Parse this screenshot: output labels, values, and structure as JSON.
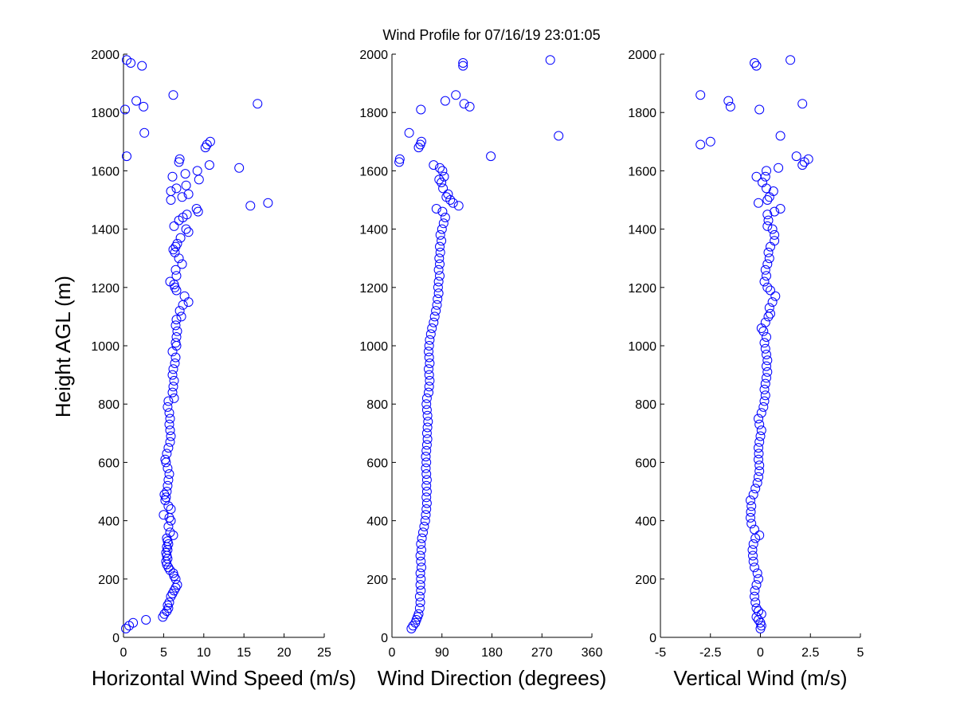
{
  "figure": {
    "title": "Wind Profile for  07/16/19 23:01:05",
    "ylabel": "Height AGL (m)"
  },
  "colors": {
    "marker": "#0000ff",
    "axis": "#000000",
    "background": "#ffffff"
  },
  "chart_data": [
    {
      "type": "scatter",
      "name": "speed",
      "xlabel": "Horizontal Wind Speed (m/s)",
      "ylabel": "Height AGL (m)",
      "xlim": [
        0,
        25
      ],
      "ylim": [
        0,
        2000
      ],
      "xticks": [
        0,
        5,
        10,
        15,
        20,
        25
      ],
      "xtick_labels": [
        "0",
        "5",
        "10",
        "15",
        "20",
        "25"
      ],
      "yticks": [
        0,
        200,
        400,
        600,
        800,
        1000,
        1200,
        1400,
        1600,
        1800,
        2000
      ],
      "ytick_labels": [
        "0",
        "200",
        "400",
        "600",
        "800",
        "1000",
        "1200",
        "1400",
        "1600",
        "1800",
        "2000"
      ],
      "grid": false,
      "points": [
        [
          0.3,
          30
        ],
        [
          0.7,
          40
        ],
        [
          1.2,
          50
        ],
        [
          2.8,
          60
        ],
        [
          4.9,
          70
        ],
        [
          5.1,
          80
        ],
        [
          5.4,
          90
        ],
        [
          5.6,
          100
        ],
        [
          5.5,
          110
        ],
        [
          5.7,
          120
        ],
        [
          5.9,
          140
        ],
        [
          6.1,
          150
        ],
        [
          6.3,
          160
        ],
        [
          6.5,
          170
        ],
        [
          6.7,
          180
        ],
        [
          6.5,
          200
        ],
        [
          6.3,
          210
        ],
        [
          6.2,
          220
        ],
        [
          5.8,
          230
        ],
        [
          5.6,
          240
        ],
        [
          5.4,
          250
        ],
        [
          5.3,
          260
        ],
        [
          5.5,
          270
        ],
        [
          5.4,
          280
        ],
        [
          5.3,
          290
        ],
        [
          5.5,
          300
        ],
        [
          5.4,
          310
        ],
        [
          5.6,
          320
        ],
        [
          5.5,
          330
        ],
        [
          5.4,
          340
        ],
        [
          6.2,
          350
        ],
        [
          5.8,
          360
        ],
        [
          5.6,
          380
        ],
        [
          5.9,
          400
        ],
        [
          5.7,
          410
        ],
        [
          5.0,
          420
        ],
        [
          5.9,
          440
        ],
        [
          5.6,
          450
        ],
        [
          5.2,
          470
        ],
        [
          5.3,
          480
        ],
        [
          5.1,
          490
        ],
        [
          5.4,
          500
        ],
        [
          5.5,
          520
        ],
        [
          5.6,
          540
        ],
        [
          5.7,
          560
        ],
        [
          5.5,
          580
        ],
        [
          5.3,
          600
        ],
        [
          5.2,
          610
        ],
        [
          5.4,
          630
        ],
        [
          5.6,
          650
        ],
        [
          5.8,
          670
        ],
        [
          5.9,
          690
        ],
        [
          5.8,
          710
        ],
        [
          5.7,
          730
        ],
        [
          5.8,
          750
        ],
        [
          5.7,
          770
        ],
        [
          5.5,
          790
        ],
        [
          5.6,
          810
        ],
        [
          6.3,
          820
        ],
        [
          6.1,
          840
        ],
        [
          6.2,
          860
        ],
        [
          6.3,
          880
        ],
        [
          6.1,
          900
        ],
        [
          6.2,
          920
        ],
        [
          6.4,
          940
        ],
        [
          6.5,
          960
        ],
        [
          6.1,
          980
        ],
        [
          6.6,
          1000
        ],
        [
          6.5,
          1010
        ],
        [
          6.6,
          1030
        ],
        [
          6.7,
          1050
        ],
        [
          6.5,
          1070
        ],
        [
          6.6,
          1090
        ],
        [
          7.2,
          1100
        ],
        [
          7.0,
          1120
        ],
        [
          7.4,
          1140
        ],
        [
          8.1,
          1150
        ],
        [
          7.6,
          1170
        ],
        [
          6.6,
          1190
        ],
        [
          6.4,
          1200
        ],
        [
          6.3,
          1210
        ],
        [
          5.8,
          1220
        ],
        [
          6.6,
          1240
        ],
        [
          6.5,
          1260
        ],
        [
          7.3,
          1280
        ],
        [
          6.9,
          1300
        ],
        [
          6.4,
          1320
        ],
        [
          6.2,
          1330
        ],
        [
          6.5,
          1340
        ],
        [
          6.7,
          1350
        ],
        [
          7.1,
          1370
        ],
        [
          8.1,
          1390
        ],
        [
          7.8,
          1400
        ],
        [
          6.3,
          1410
        ],
        [
          6.9,
          1430
        ],
        [
          7.4,
          1440
        ],
        [
          7.9,
          1450
        ],
        [
          9.3,
          1460
        ],
        [
          9.1,
          1470
        ],
        [
          15.8,
          1480
        ],
        [
          18.0,
          1490
        ],
        [
          5.9,
          1500
        ],
        [
          7.3,
          1510
        ],
        [
          8.1,
          1520
        ],
        [
          5.9,
          1530
        ],
        [
          6.6,
          1540
        ],
        [
          7.8,
          1550
        ],
        [
          9.4,
          1570
        ],
        [
          6.1,
          1580
        ],
        [
          7.7,
          1590
        ],
        [
          9.2,
          1600
        ],
        [
          14.4,
          1610
        ],
        [
          10.7,
          1620
        ],
        [
          6.9,
          1630
        ],
        [
          7.0,
          1640
        ],
        [
          0.4,
          1650
        ],
        [
          10.2,
          1680
        ],
        [
          10.4,
          1690
        ],
        [
          10.8,
          1700
        ],
        [
          2.6,
          1730
        ],
        [
          0.2,
          1810
        ],
        [
          2.5,
          1820
        ],
        [
          16.7,
          1830
        ],
        [
          1.6,
          1840
        ],
        [
          6.2,
          1860
        ],
        [
          2.3,
          1960
        ],
        [
          0.9,
          1970
        ],
        [
          0.4,
          1980
        ]
      ]
    },
    {
      "type": "scatter",
      "name": "direction",
      "xlabel": "Wind Direction (degrees)",
      "xlim": [
        0,
        360
      ],
      "ylim": [
        0,
        2000
      ],
      "xticks": [
        0,
        90,
        180,
        270,
        360
      ],
      "xtick_labels": [
        "0",
        "90",
        "180",
        "270",
        "360"
      ],
      "yticks": [
        0,
        200,
        400,
        600,
        800,
        1000,
        1200,
        1400,
        1600,
        1800,
        2000
      ],
      "ytick_labels": [
        "0",
        "200",
        "400",
        "600",
        "800",
        "1000",
        "1200",
        "1400",
        "1600",
        "1800",
        "2000"
      ],
      "grid": false,
      "points": [
        [
          35,
          30
        ],
        [
          38,
          40
        ],
        [
          42,
          50
        ],
        [
          44,
          60
        ],
        [
          46,
          70
        ],
        [
          48,
          80
        ],
        [
          50,
          100
        ],
        [
          51,
          120
        ],
        [
          50,
          140
        ],
        [
          52,
          160
        ],
        [
          51,
          180
        ],
        [
          52,
          200
        ],
        [
          51,
          220
        ],
        [
          53,
          240
        ],
        [
          52,
          260
        ],
        [
          51,
          280
        ],
        [
          53,
          300
        ],
        [
          52,
          320
        ],
        [
          54,
          340
        ],
        [
          56,
          360
        ],
        [
          58,
          380
        ],
        [
          60,
          400
        ],
        [
          61,
          420
        ],
        [
          62,
          440
        ],
        [
          63,
          460
        ],
        [
          62,
          480
        ],
        [
          63,
          500
        ],
        [
          62,
          520
        ],
        [
          63,
          540
        ],
        [
          62,
          560
        ],
        [
          61,
          580
        ],
        [
          62,
          600
        ],
        [
          61,
          620
        ],
        [
          62,
          640
        ],
        [
          63,
          660
        ],
        [
          64,
          680
        ],
        [
          63,
          700
        ],
        [
          64,
          720
        ],
        [
          65,
          740
        ],
        [
          64,
          760
        ],
        [
          63,
          780
        ],
        [
          62,
          800
        ],
        [
          63,
          820
        ],
        [
          66,
          840
        ],
        [
          67,
          860
        ],
        [
          68,
          880
        ],
        [
          67,
          900
        ],
        [
          66,
          920
        ],
        [
          68,
          940
        ],
        [
          67,
          960
        ],
        [
          66,
          980
        ],
        [
          67,
          1000
        ],
        [
          68,
          1020
        ],
        [
          70,
          1040
        ],
        [
          72,
          1060
        ],
        [
          75,
          1080
        ],
        [
          77,
          1100
        ],
        [
          79,
          1120
        ],
        [
          81,
          1140
        ],
        [
          82,
          1160
        ],
        [
          84,
          1180
        ],
        [
          83,
          1200
        ],
        [
          84,
          1220
        ],
        [
          86,
          1240
        ],
        [
          84,
          1260
        ],
        [
          86,
          1280
        ],
        [
          85,
          1300
        ],
        [
          87,
          1320
        ],
        [
          86,
          1340
        ],
        [
          89,
          1360
        ],
        [
          87,
          1380
        ],
        [
          90,
          1400
        ],
        [
          93,
          1420
        ],
        [
          96,
          1440
        ],
        [
          91,
          1460
        ],
        [
          80,
          1470
        ],
        [
          120,
          1480
        ],
        [
          110,
          1490
        ],
        [
          105,
          1500
        ],
        [
          98,
          1510
        ],
        [
          101,
          1520
        ],
        [
          92,
          1540
        ],
        [
          89,
          1560
        ],
        [
          85,
          1570
        ],
        [
          94,
          1580
        ],
        [
          91,
          1600
        ],
        [
          86,
          1610
        ],
        [
          75,
          1620
        ],
        [
          178,
          1650
        ],
        [
          13,
          1630
        ],
        [
          14,
          1640
        ],
        [
          48,
          1680
        ],
        [
          51,
          1690
        ],
        [
          53,
          1700
        ],
        [
          300,
          1720
        ],
        [
          31,
          1730
        ],
        [
          52,
          1810
        ],
        [
          140,
          1820
        ],
        [
          130,
          1830
        ],
        [
          96,
          1840
        ],
        [
          115,
          1860
        ],
        [
          128,
          1960
        ],
        [
          128,
          1970
        ],
        [
          285,
          1980
        ]
      ]
    },
    {
      "type": "scatter",
      "name": "vertical",
      "xlabel": "Vertical Wind (m/s)",
      "xlim": [
        -5,
        5
      ],
      "ylim": [
        0,
        2000
      ],
      "xticks": [
        -5,
        -2.5,
        0,
        2.5,
        5
      ],
      "xtick_labels": [
        "-5",
        "-2.5",
        "0",
        "2.5",
        "5"
      ],
      "yticks": [
        0,
        200,
        400,
        600,
        800,
        1000,
        1200,
        1400,
        1600,
        1800,
        2000
      ],
      "ytick_labels": [
        "0",
        "200",
        "400",
        "600",
        "800",
        "1000",
        "1200",
        "1400",
        "1600",
        "1800",
        "2000"
      ],
      "grid": false,
      "points": [
        [
          0.0,
          30
        ],
        [
          0.05,
          40
        ],
        [
          0.0,
          50
        ],
        [
          -0.1,
          60
        ],
        [
          -0.2,
          70
        ],
        [
          0.05,
          80
        ],
        [
          -0.1,
          90
        ],
        [
          -0.2,
          100
        ],
        [
          -0.25,
          120
        ],
        [
          -0.3,
          140
        ],
        [
          -0.28,
          160
        ],
        [
          -0.2,
          180
        ],
        [
          -0.1,
          200
        ],
        [
          -0.15,
          220
        ],
        [
          -0.3,
          240
        ],
        [
          -0.35,
          260
        ],
        [
          -0.38,
          280
        ],
        [
          -0.4,
          300
        ],
        [
          -0.35,
          320
        ],
        [
          -0.25,
          340
        ],
        [
          -0.05,
          350
        ],
        [
          -0.3,
          370
        ],
        [
          -0.45,
          390
        ],
        [
          -0.5,
          410
        ],
        [
          -0.48,
          430
        ],
        [
          -0.45,
          450
        ],
        [
          -0.5,
          470
        ],
        [
          -0.35,
          490
        ],
        [
          -0.25,
          510
        ],
        [
          -0.15,
          530
        ],
        [
          -0.1,
          550
        ],
        [
          -0.05,
          570
        ],
        [
          -0.05,
          590
        ],
        [
          -0.1,
          610
        ],
        [
          -0.08,
          630
        ],
        [
          -0.1,
          650
        ],
        [
          -0.05,
          670
        ],
        [
          0.0,
          690
        ],
        [
          0.05,
          710
        ],
        [
          -0.05,
          730
        ],
        [
          -0.1,
          750
        ],
        [
          0.05,
          770
        ],
        [
          0.15,
          790
        ],
        [
          0.2,
          810
        ],
        [
          0.25,
          830
        ],
        [
          0.2,
          850
        ],
        [
          0.25,
          870
        ],
        [
          0.3,
          890
        ],
        [
          0.35,
          910
        ],
        [
          0.3,
          930
        ],
        [
          0.35,
          950
        ],
        [
          0.3,
          970
        ],
        [
          0.25,
          990
        ],
        [
          0.2,
          1010
        ],
        [
          0.3,
          1030
        ],
        [
          0.15,
          1050
        ],
        [
          0.05,
          1060
        ],
        [
          0.25,
          1080
        ],
        [
          0.4,
          1100
        ],
        [
          0.5,
          1110
        ],
        [
          0.45,
          1130
        ],
        [
          0.6,
          1150
        ],
        [
          0.75,
          1170
        ],
        [
          0.5,
          1190
        ],
        [
          0.35,
          1200
        ],
        [
          0.2,
          1220
        ],
        [
          0.3,
          1240
        ],
        [
          0.25,
          1260
        ],
        [
          0.35,
          1280
        ],
        [
          0.45,
          1300
        ],
        [
          0.4,
          1320
        ],
        [
          0.5,
          1340
        ],
        [
          0.7,
          1360
        ],
        [
          0.7,
          1380
        ],
        [
          0.6,
          1400
        ],
        [
          0.35,
          1410
        ],
        [
          0.4,
          1430
        ],
        [
          0.35,
          1450
        ],
        [
          1.0,
          1470
        ],
        [
          0.7,
          1460
        ],
        [
          -0.1,
          1490
        ],
        [
          0.35,
          1500
        ],
        [
          0.45,
          1510
        ],
        [
          0.65,
          1530
        ],
        [
          0.3,
          1540
        ],
        [
          0.1,
          1560
        ],
        [
          0.25,
          1580
        ],
        [
          -0.2,
          1580
        ],
        [
          0.3,
          1600
        ],
        [
          0.9,
          1610
        ],
        [
          -2.5,
          1700
        ],
        [
          -3.0,
          1690
        ],
        [
          2.1,
          1620
        ],
        [
          2.2,
          1630
        ],
        [
          2.4,
          1640
        ],
        [
          1.8,
          1650
        ],
        [
          1.0,
          1720
        ],
        [
          -0.05,
          1810
        ],
        [
          -1.5,
          1820
        ],
        [
          2.1,
          1830
        ],
        [
          -1.6,
          1840
        ],
        [
          -3.0,
          1860
        ],
        [
          -0.2,
          1960
        ],
        [
          -0.3,
          1970
        ],
        [
          1.5,
          1980
        ]
      ]
    }
  ]
}
